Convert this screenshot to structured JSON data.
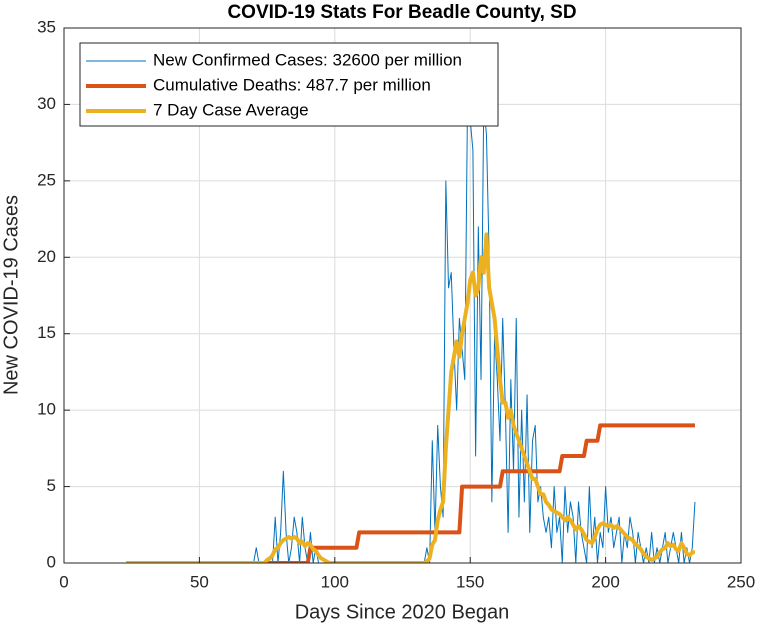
{
  "chart_data": {
    "type": "line",
    "title": "COVID-19 Stats For Beadle County, SD",
    "xlabel": "Days Since 2020 Began",
    "ylabel": "New COVID-19 Cases",
    "xlim": [
      0,
      250
    ],
    "xticks": [
      0,
      50,
      100,
      150,
      200,
      250
    ],
    "ylim": [
      0,
      35
    ],
    "yticks": [
      0,
      5,
      10,
      15,
      20,
      25,
      30,
      35
    ],
    "grid": true,
    "legend": "upper left",
    "x": [
      23,
      24,
      25,
      26,
      27,
      28,
      29,
      30,
      31,
      32,
      33,
      34,
      35,
      36,
      37,
      38,
      39,
      40,
      41,
      42,
      43,
      44,
      45,
      46,
      47,
      48,
      49,
      50,
      51,
      52,
      53,
      54,
      55,
      56,
      57,
      58,
      59,
      60,
      61,
      62,
      63,
      64,
      65,
      66,
      67,
      68,
      69,
      70,
      71,
      72,
      73,
      74,
      75,
      76,
      77,
      78,
      79,
      80,
      81,
      82,
      83,
      84,
      85,
      86,
      87,
      88,
      89,
      90,
      91,
      92,
      93,
      94,
      95,
      96,
      97,
      98,
      99,
      100,
      101,
      102,
      103,
      104,
      105,
      106,
      107,
      108,
      109,
      110,
      111,
      112,
      113,
      114,
      115,
      116,
      117,
      118,
      119,
      120,
      121,
      122,
      123,
      124,
      125,
      126,
      127,
      128,
      129,
      130,
      131,
      132,
      133,
      134,
      135,
      136,
      137,
      138,
      139,
      140,
      141,
      142,
      143,
      144,
      145,
      146,
      147,
      148,
      149,
      150,
      151,
      152,
      153,
      154,
      155,
      156,
      157,
      158,
      159,
      160,
      161,
      162,
      163,
      164,
      165,
      166,
      167,
      168,
      169,
      170,
      171,
      172,
      173,
      174,
      175,
      176,
      177,
      178,
      179,
      180,
      181,
      182,
      183,
      184,
      185,
      186,
      187,
      188,
      189,
      190,
      191,
      192,
      193,
      194,
      195,
      196,
      197,
      198,
      199,
      200,
      201,
      202,
      203,
      204,
      205,
      206,
      207,
      208,
      209,
      210,
      211,
      212,
      213,
      214,
      215,
      216,
      217,
      218,
      219,
      220,
      221,
      222,
      223,
      224,
      225,
      226,
      227,
      228,
      229,
      230,
      231,
      232,
      233
    ],
    "series": [
      {
        "name": "New Confirmed Cases: 32600 per million",
        "color": "#0072BD",
        "width": 1,
        "values": [
          0,
          0,
          0,
          0,
          0,
          0,
          0,
          0,
          0,
          0,
          0,
          0,
          0,
          0,
          0,
          0,
          0,
          0,
          0,
          0,
          0,
          0,
          0,
          0,
          0,
          0,
          0,
          0,
          0,
          0,
          0,
          0,
          0,
          0,
          0,
          0,
          0,
          0,
          0,
          0,
          0,
          0,
          0,
          0,
          0,
          0,
          0,
          0,
          1,
          0,
          0,
          0,
          0,
          0,
          0,
          3,
          0,
          2,
          6,
          2,
          0,
          1,
          3,
          2,
          0,
          3,
          1,
          0,
          2,
          0,
          1,
          0,
          0,
          0,
          0,
          0,
          0,
          0,
          0,
          0,
          0,
          0,
          0,
          0,
          0,
          0,
          0,
          0,
          0,
          0,
          0,
          0,
          0,
          0,
          0,
          0,
          0,
          0,
          0,
          0,
          0,
          0,
          0,
          0,
          0,
          0,
          0,
          0,
          0,
          0,
          0,
          1,
          0,
          8,
          2,
          9,
          5,
          3,
          25,
          18,
          19,
          14,
          10,
          16,
          14,
          12,
          30,
          29,
          27,
          7,
          22,
          12,
          30,
          28,
          20,
          4,
          15,
          12,
          8,
          16,
          10,
          2,
          12,
          6,
          16,
          3,
          10,
          4,
          11,
          2,
          8,
          9,
          4,
          5,
          3,
          2,
          3,
          1,
          5,
          2,
          3,
          0,
          5,
          2,
          4,
          3,
          0,
          4,
          2,
          1,
          0,
          5,
          1,
          3,
          0,
          2,
          1,
          5,
          2,
          3,
          1,
          2,
          3,
          0,
          2,
          1,
          3,
          2,
          0,
          2,
          1,
          0,
          1,
          0,
          2,
          0,
          1,
          0,
          1,
          2,
          0,
          1,
          2,
          1,
          0,
          2,
          0,
          1,
          0,
          1,
          4
        ]
      },
      {
        "name": "Cumulative Deaths: 487.7 per million",
        "color": "#D95319",
        "width": 4,
        "values": [
          0,
          0,
          0,
          0,
          0,
          0,
          0,
          0,
          0,
          0,
          0,
          0,
          0,
          0,
          0,
          0,
          0,
          0,
          0,
          0,
          0,
          0,
          0,
          0,
          0,
          0,
          0,
          0,
          0,
          0,
          0,
          0,
          0,
          0,
          0,
          0,
          0,
          0,
          0,
          0,
          0,
          0,
          0,
          0,
          0,
          0,
          0,
          0,
          0,
          0,
          0,
          0,
          0,
          0,
          0,
          0,
          0,
          0,
          0,
          0,
          0,
          0,
          0,
          0,
          0,
          0,
          0,
          0,
          1,
          1,
          1,
          1,
          1,
          1,
          1,
          1,
          1,
          1,
          1,
          1,
          1,
          1,
          1,
          1,
          1,
          1,
          2,
          2,
          2,
          2,
          2,
          2,
          2,
          2,
          2,
          2,
          2,
          2,
          2,
          2,
          2,
          2,
          2,
          2,
          2,
          2,
          2,
          2,
          2,
          2,
          2,
          2,
          2,
          2,
          2,
          2,
          2,
          2,
          2,
          2,
          2,
          2,
          2,
          2,
          5,
          5,
          5,
          5,
          5,
          5,
          5,
          5,
          5,
          5,
          5,
          5,
          5,
          5,
          5,
          6,
          6,
          6,
          6,
          6,
          6,
          6,
          6,
          6,
          6,
          6,
          6,
          6,
          6,
          6,
          6,
          6,
          6,
          6,
          6,
          6,
          6,
          7,
          7,
          7,
          7,
          7,
          7,
          7,
          7,
          7,
          8,
          8,
          8,
          8,
          8,
          9,
          9,
          9,
          9,
          9,
          9,
          9,
          9,
          9,
          9,
          9,
          9,
          9,
          9,
          9,
          9,
          9,
          9,
          9,
          9,
          9,
          9,
          9,
          9,
          9,
          9,
          9,
          9,
          9,
          9,
          9,
          9,
          9,
          9,
          9,
          9
        ]
      },
      {
        "name": "7 Day Case Average",
        "color": "#EDB120",
        "width": 4,
        "values": [
          0,
          0,
          0,
          0,
          0,
          0,
          0,
          0,
          0,
          0,
          0,
          0,
          0,
          0,
          0,
          0,
          0,
          0,
          0,
          0,
          0,
          0,
          0,
          0,
          0,
          0,
          0,
          0,
          0,
          0,
          0,
          0,
          0,
          0,
          0,
          0,
          0,
          0,
          0,
          0,
          0,
          0,
          0,
          0,
          0,
          0,
          0,
          0,
          0,
          0,
          0,
          0,
          0.2,
          0.3,
          0.5,
          0.9,
          1,
          1.3,
          1.5,
          1.6,
          1.7,
          1.6,
          1.7,
          1.6,
          1.3,
          1.4,
          1.1,
          1.3,
          1.2,
          0.9,
          0.8,
          0.5,
          0.3,
          0.2,
          0.1,
          0,
          0,
          0,
          0,
          0,
          0,
          0,
          0,
          0,
          0,
          0,
          0,
          0,
          0,
          0,
          0,
          0,
          0,
          0,
          0,
          0,
          0,
          0,
          0,
          0,
          0,
          0,
          0,
          0,
          0,
          0,
          0,
          0,
          0,
          0,
          0,
          0.1,
          0.3,
          1.2,
          1.5,
          2.8,
          3.5,
          4,
          7.5,
          10,
          12.5,
          13.5,
          14.5,
          13.5,
          15,
          16,
          17,
          18.5,
          19,
          17.5,
          18,
          20,
          19,
          21.5,
          18,
          17,
          16,
          14,
          12,
          10.5,
          10.5,
          9.5,
          10,
          9,
          8.5,
          8,
          7.5,
          7,
          6.5,
          6,
          5.5,
          5.5,
          5,
          4.5,
          4.5,
          4,
          3.8,
          3.5,
          3.4,
          3.3,
          3.2,
          3,
          2.8,
          3,
          2.8,
          2.5,
          2.2,
          2.4,
          2.2,
          1.9,
          1.5,
          1.4,
          1.3,
          1.7,
          2.2,
          2.5,
          2.6,
          2.5,
          2.4,
          2.5,
          2.3,
          2.4,
          2.3,
          2.1,
          1.9,
          1.7,
          1.6,
          1.5,
          1.2,
          1.1,
          0.9,
          0.6,
          0.4,
          0.3,
          0.2,
          0.3,
          0.4,
          0.7,
          0.9,
          1,
          1.3,
          1.1,
          1.2,
          0.9,
          0.8,
          1.3,
          1,
          0.6,
          0.5,
          0.7,
          0.7
        ]
      }
    ]
  }
}
